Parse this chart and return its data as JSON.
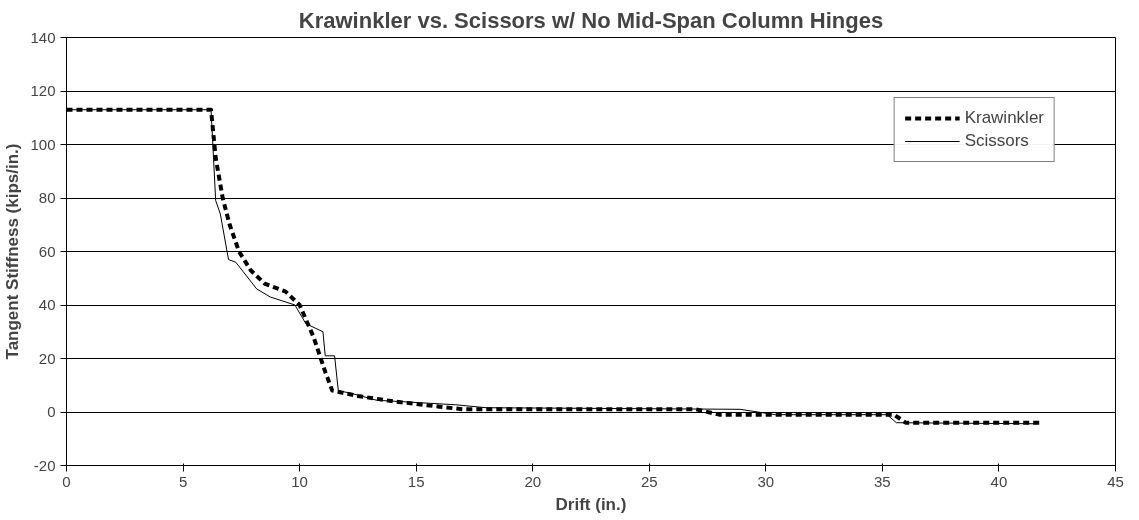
{
  "chart_data": {
    "type": "line",
    "title": "Krawinkler vs. Scissors w/ No Mid-Span Column Hinges",
    "xlabel": "Drift (in.)",
    "ylabel": "Tangent Stiffness (kips/in.)",
    "xlim": [
      0,
      45
    ],
    "xticks": [
      0,
      5,
      10,
      15,
      20,
      25,
      30,
      35,
      40,
      45
    ],
    "ylim": [
      -20,
      140
    ],
    "yticks": [
      -20,
      0,
      20,
      40,
      60,
      80,
      100,
      120,
      140
    ],
    "grid": "y",
    "legend": "top right",
    "series": [
      {
        "name": "Krawinkler",
        "color": "#000000",
        "line_style": "dashed",
        "x": [
          0,
          6.2,
          6.4,
          6.7,
          7.0,
          7.4,
          7.9,
          8.5,
          9.4,
          10,
          10.6,
          11.1,
          11.4,
          12.5,
          14,
          16,
          17,
          27,
          28,
          35.5,
          36,
          41.8
        ],
        "values": [
          113,
          113,
          95,
          80,
          70,
          60,
          53,
          48,
          45,
          40,
          28,
          15,
          8,
          6,
          4,
          2,
          1,
          1,
          -1,
          -1,
          -4,
          -4
        ]
      },
      {
        "name": "Scissors",
        "color": "#000000",
        "line_style": "solid",
        "x": [
          0,
          6.2,
          6.4,
          6.6,
          6.95,
          7.26,
          8.16,
          8.74,
          9.8,
          10.27,
          11.0,
          11.1,
          11.5,
          11.66,
          12.2,
          13.3,
          16.7,
          18,
          28.9,
          30.4,
          35.2,
          35.6,
          41.6
        ],
        "values": [
          113,
          113,
          79,
          74,
          57,
          56,
          46,
          43,
          40,
          33,
          30,
          21,
          21,
          8,
          7,
          4.4,
          2.7,
          1.6,
          1,
          -1,
          -1,
          -4,
          -4.4
        ]
      }
    ]
  }
}
